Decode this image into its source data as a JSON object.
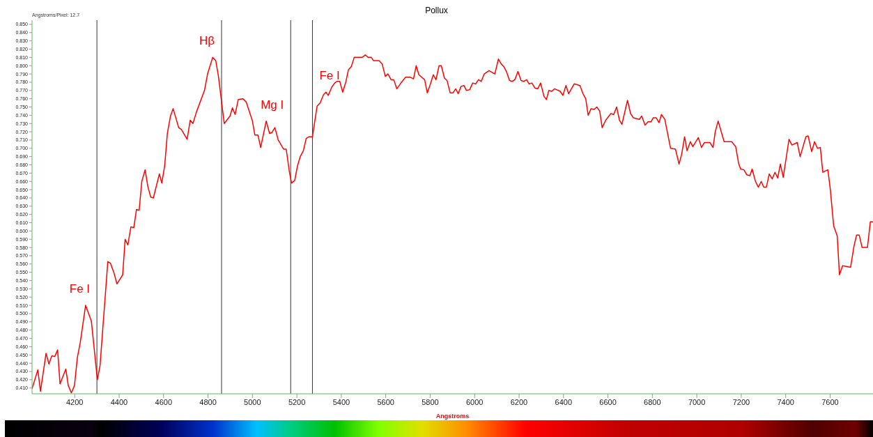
{
  "chart_data": {
    "type": "line",
    "title": "Pollux",
    "xlabel": "Angstroms",
    "marker": "none",
    "line_style": "solid",
    "x": [
      4008,
      4034,
      4046,
      4071,
      4084,
      4097,
      4110,
      4123,
      4134,
      4160,
      4171,
      4185,
      4199,
      4212,
      4225,
      4249,
      4275,
      4302,
      4314,
      4349,
      4361,
      4377,
      4390,
      4416,
      4427,
      4439,
      4453,
      4466,
      4478,
      4490,
      4502,
      4517,
      4529,
      4542,
      4554,
      4581,
      4592,
      4605,
      4617,
      4631,
      4643,
      4668,
      4680,
      4706,
      4720,
      4732,
      4748,
      4784,
      4798,
      4821,
      4835,
      4847,
      4873,
      4899,
      4910,
      4922,
      4936,
      4957,
      4972,
      4999,
      5011,
      5025,
      5037,
      5062,
      5077,
      5087,
      5101,
      5116,
      5140,
      5152,
      5166,
      5176,
      5190,
      5203,
      5215,
      5229,
      5242,
      5255,
      5270,
      5291,
      5305,
      5320,
      5331,
      5341,
      5357,
      5370,
      5380,
      5393,
      5406,
      5420,
      5432,
      5445,
      5458,
      5493,
      5508,
      5521,
      5535,
      5545,
      5570,
      5584,
      5598,
      5610,
      5624,
      5636,
      5650,
      5671,
      5689,
      5711,
      5725,
      5737,
      5749,
      5775,
      5787,
      5800,
      5814,
      5826,
      5840,
      5850,
      5864,
      5876,
      5890,
      5902,
      5915,
      5926,
      5939,
      5952,
      5963,
      5978,
      5991,
      6005,
      6017,
      6030,
      6043,
      6065,
      6091,
      6107,
      6120,
      6131,
      6143,
      6157,
      6169,
      6181,
      6195,
      6209,
      6221,
      6234,
      6245,
      6258,
      6271,
      6284,
      6297,
      6312,
      6323,
      6334,
      6347,
      6360,
      6385,
      6397,
      6411,
      6423,
      6448,
      6474,
      6488,
      6500,
      6511,
      6524,
      6538,
      6550,
      6563,
      6574,
      6590,
      6613,
      6626,
      6639,
      6652,
      6663,
      6688,
      6702,
      6714,
      6741,
      6752,
      6767,
      6780,
      6794,
      6804,
      6817,
      6830,
      6841,
      6856,
      6882,
      6904,
      6920,
      6932,
      6945,
      6956,
      6971,
      6982,
      7007,
      7021,
      7034,
      7059,
      7073,
      7083,
      7096,
      7123,
      7157,
      7175,
      7188,
      7197,
      7212,
      7225,
      7239,
      7249,
      7264,
      7277,
      7290,
      7301,
      7313,
      7326,
      7339,
      7352,
      7364,
      7376,
      7389,
      7415,
      7428,
      7452,
      7465,
      7491,
      7501,
      7517,
      7530,
      7543,
      7556,
      7567,
      7590,
      7601,
      7616,
      7632,
      7642,
      7656,
      7692,
      7707,
      7719,
      7731,
      7744,
      7768,
      7781,
      7793
    ],
    "series": [
      {
        "color": "#ff0000",
        "values": [
          0.409,
          0.432,
          0.406,
          0.452,
          0.439,
          0.449,
          0.448,
          0.456,
          0.415,
          0.433,
          0.413,
          0.404,
          0.413,
          0.447,
          0.465,
          0.51,
          0.491,
          0.42,
          0.437,
          0.563,
          0.561,
          0.549,
          0.536,
          0.547,
          0.59,
          0.583,
          0.605,
          0.604,
          0.626,
          0.625,
          0.66,
          0.674,
          0.654,
          0.641,
          0.64,
          0.669,
          0.658,
          0.679,
          0.718,
          0.739,
          0.748,
          0.725,
          0.723,
          0.711,
          0.734,
          0.73,
          0.744,
          0.77,
          0.79,
          0.81,
          0.806,
          0.787,
          0.73,
          0.739,
          0.749,
          0.741,
          0.759,
          0.76,
          0.756,
          0.734,
          0.716,
          0.716,
          0.701,
          0.733,
          0.718,
          0.719,
          0.725,
          0.71,
          0.699,
          0.699,
          0.672,
          0.658,
          0.661,
          0.679,
          0.69,
          0.697,
          0.712,
          0.714,
          0.714,
          0.751,
          0.755,
          0.765,
          0.768,
          0.764,
          0.774,
          0.779,
          0.781,
          0.781,
          0.768,
          0.78,
          0.795,
          0.799,
          0.81,
          0.81,
          0.813,
          0.81,
          0.81,
          0.806,
          0.806,
          0.802,
          0.787,
          0.79,
          0.783,
          0.783,
          0.772,
          0.78,
          0.786,
          0.786,
          0.784,
          0.8,
          0.789,
          0.783,
          0.767,
          0.777,
          0.789,
          0.783,
          0.8,
          0.8,
          0.785,
          0.782,
          0.767,
          0.767,
          0.772,
          0.766,
          0.775,
          0.776,
          0.77,
          0.771,
          0.779,
          0.778,
          0.783,
          0.781,
          0.79,
          0.794,
          0.79,
          0.808,
          0.802,
          0.799,
          0.793,
          0.782,
          0.781,
          0.783,
          0.793,
          0.782,
          0.781,
          0.783,
          0.778,
          0.779,
          0.773,
          0.772,
          0.779,
          0.763,
          0.759,
          0.77,
          0.769,
          0.772,
          0.769,
          0.764,
          0.776,
          0.766,
          0.778,
          0.776,
          0.766,
          0.76,
          0.74,
          0.748,
          0.747,
          0.75,
          0.745,
          0.725,
          0.734,
          0.742,
          0.741,
          0.75,
          0.734,
          0.729,
          0.758,
          0.742,
          0.737,
          0.735,
          0.739,
          0.728,
          0.732,
          0.732,
          0.737,
          0.737,
          0.731,
          0.741,
          0.735,
          0.7,
          0.699,
          0.681,
          0.693,
          0.714,
          0.697,
          0.708,
          0.702,
          0.713,
          0.701,
          0.707,
          0.707,
          0.701,
          0.72,
          0.733,
          0.708,
          0.708,
          0.702,
          0.682,
          0.675,
          0.674,
          0.668,
          0.667,
          0.675,
          0.66,
          0.653,
          0.66,
          0.653,
          0.653,
          0.669,
          0.663,
          0.671,
          0.664,
          0.681,
          0.665,
          0.711,
          0.704,
          0.707,
          0.69,
          0.714,
          0.715,
          0.696,
          0.708,
          0.7,
          0.701,
          0.671,
          0.674,
          0.65,
          0.606,
          0.594,
          0.547,
          0.558,
          0.556,
          0.581,
          0.595,
          0.595,
          0.58,
          0.58,
          0.611,
          0.611
        ]
      }
    ],
    "xlim": [
      4008,
      7793
    ],
    "xticks": [
      4200,
      4400,
      4600,
      4800,
      5000,
      5200,
      5400,
      5600,
      5800,
      6000,
      6200,
      6400,
      6600,
      6800,
      7000,
      7200,
      7400,
      7600
    ],
    "ylim": [
      0.403,
      0.855
    ],
    "yticks": [
      {
        "value": 0.41,
        "label": "0.410"
      },
      {
        "value": 0.42,
        "label": "0.420"
      },
      {
        "value": 0.43,
        "label": "0.430"
      },
      {
        "value": 0.44,
        "label": "0.440"
      },
      {
        "value": 0.45,
        "label": "0.450"
      },
      {
        "value": 0.46,
        "label": "0.460"
      },
      {
        "value": 0.47,
        "label": "0.470"
      },
      {
        "value": 0.48,
        "label": "0.480"
      },
      {
        "value": 0.49,
        "label": "0.490"
      },
      {
        "value": 0.5,
        "label": "0.500"
      },
      {
        "value": 0.51,
        "label": "0.510"
      },
      {
        "value": 0.52,
        "label": "0.520"
      },
      {
        "value": 0.53,
        "label": "0.530"
      },
      {
        "value": 0.54,
        "label": "0.540"
      },
      {
        "value": 0.55,
        "label": "0.550"
      },
      {
        "value": 0.56,
        "label": "0.560"
      },
      {
        "value": 0.57,
        "label": "0.570"
      },
      {
        "value": 0.58,
        "label": "0.580"
      },
      {
        "value": 0.59,
        "label": "0.590"
      },
      {
        "value": 0.6,
        "label": "0.600"
      },
      {
        "value": 0.61,
        "label": "0.610"
      },
      {
        "value": 0.62,
        "label": "0.620"
      },
      {
        "value": 0.63,
        "label": "0.630"
      },
      {
        "value": 0.64,
        "label": "0.640"
      },
      {
        "value": 0.65,
        "label": "0.650"
      },
      {
        "value": 0.66,
        "label": "0.660"
      },
      {
        "value": 0.67,
        "label": "0.670"
      },
      {
        "value": 0.68,
        "label": "0.680"
      },
      {
        "value": 0.69,
        "label": "0.690"
      },
      {
        "value": 0.7,
        "label": "0.700"
      },
      {
        "value": 0.71,
        "label": "0.710"
      },
      {
        "value": 0.72,
        "label": "0.720"
      },
      {
        "value": 0.73,
        "label": "0.730"
      },
      {
        "value": 0.74,
        "label": "0.740"
      },
      {
        "value": 0.75,
        "label": "0.750"
      },
      {
        "value": 0.76,
        "label": "0.760"
      },
      {
        "value": 0.77,
        "label": "0.770"
      },
      {
        "value": 0.78,
        "label": "0.780"
      },
      {
        "value": 0.79,
        "label": "0.790"
      },
      {
        "value": 0.8,
        "label": "0.800"
      },
      {
        "value": 0.81,
        "label": "0.810"
      },
      {
        "value": 0.82,
        "label": "0.820"
      },
      {
        "value": 0.83,
        "label": "0.830"
      },
      {
        "value": 0.84,
        "label": "0.840"
      },
      {
        "value": 0.85,
        "label": "0.850"
      }
    ],
    "ref_lines": [
      {
        "axis": "x",
        "value": 4300,
        "color": "#333333",
        "label": "Fe I"
      },
      {
        "axis": "x",
        "value": 4861,
        "color": "#333333",
        "label": "Hβ"
      },
      {
        "axis": "x",
        "value": 5172,
        "color": "#333333",
        "label": "Mg I"
      },
      {
        "axis": "x",
        "value": 5270,
        "color": "#333333",
        "label": "Fe I"
      }
    ],
    "annotations": [
      "Angstroms/Pixel: 12.7"
    ]
  }
}
